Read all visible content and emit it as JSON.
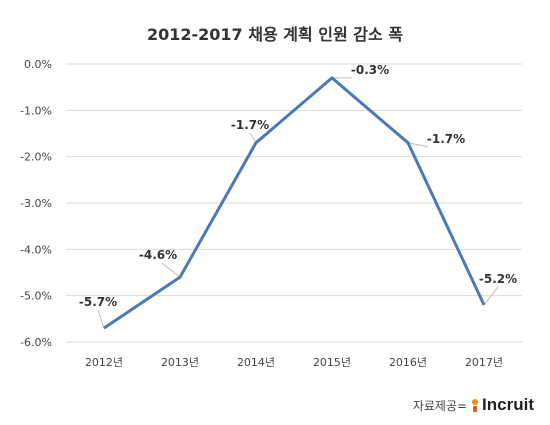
{
  "chart_data": {
    "type": "line",
    "title": "2012-2017 채용 계획 인원 감소 폭",
    "categories": [
      "2012년",
      "2013년",
      "2014년",
      "2015년",
      "2016년",
      "2017년"
    ],
    "values": [
      -5.7,
      -4.6,
      -1.7,
      -0.3,
      -1.7,
      -5.2
    ],
    "data_labels": [
      "-5.7%",
      "-4.6%",
      "-1.7%",
      "-0.3%",
      "-1.7%",
      "-5.2%"
    ],
    "highlight_index": 5,
    "y_ticks": [
      "0.0%",
      "-1.0%",
      "-2.0%",
      "-3.0%",
      "-4.0%",
      "-5.0%",
      "-6.0%"
    ],
    "ylim": [
      -6.0,
      0.0
    ],
    "xlabel": "",
    "ylabel": "",
    "grid": true,
    "legend": "none",
    "colors": {
      "line": "#4a7ab5",
      "grid": "#d9d9d9",
      "highlight_label": "#e0101a",
      "label": "#333333"
    }
  },
  "source": {
    "prefix": "자료제공=",
    "logo_text": "Incruit"
  }
}
